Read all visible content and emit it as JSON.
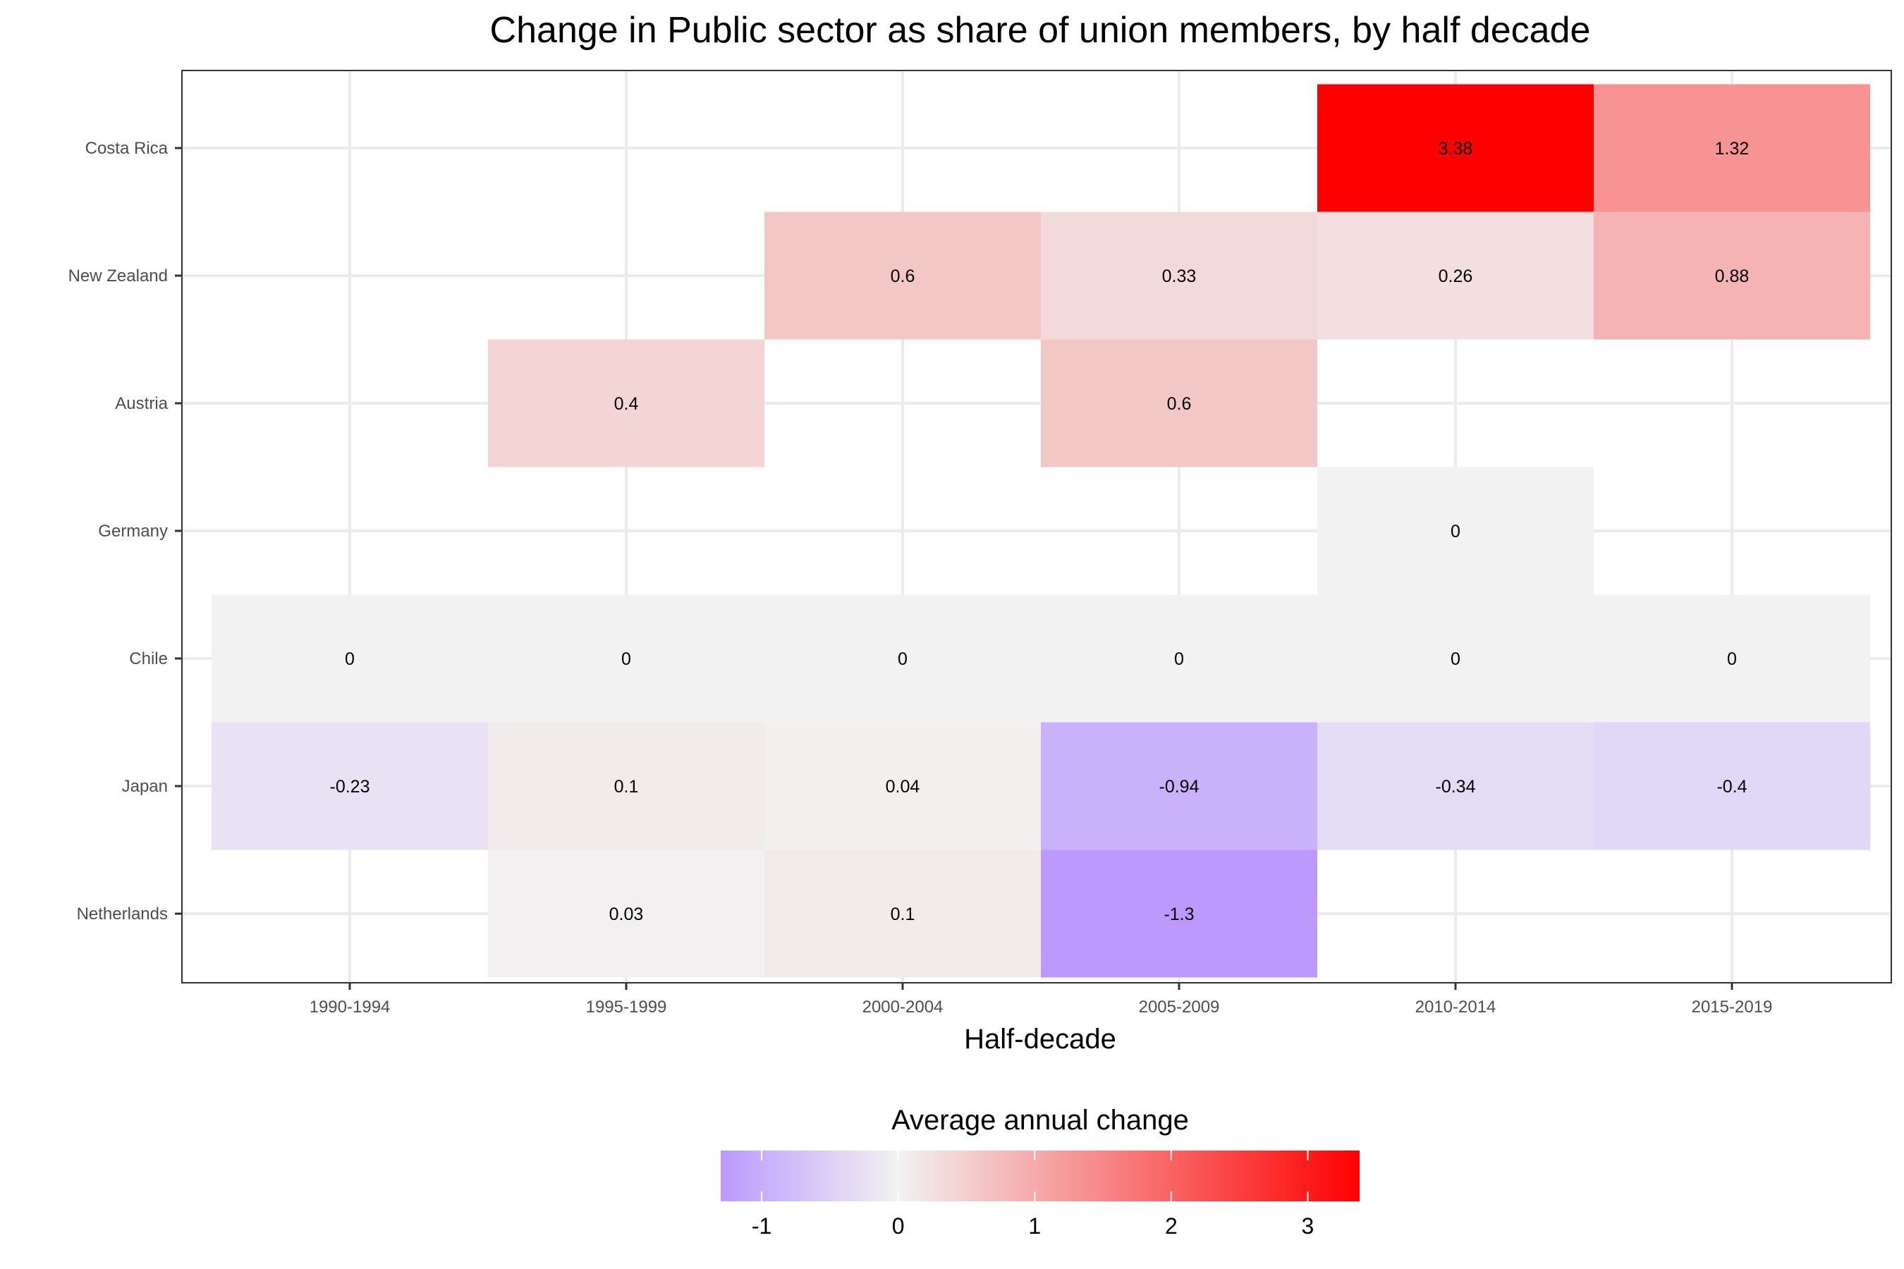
{
  "chart_data": {
    "type": "heatmap",
    "title": "Change in Public sector as share of union members, by half decade",
    "xlabel": "Half-decade",
    "ylabel": "",
    "x_categories": [
      "1990-1994",
      "1995-1999",
      "2000-2004",
      "2005-2009",
      "2010-2014",
      "2015-2019"
    ],
    "y_categories": [
      "Costa Rica",
      "New Zealand",
      "Austria",
      "Germany",
      "Chile",
      "Japan",
      "Netherlands"
    ],
    "cells": [
      {
        "x": "2010-2014",
        "y": "Costa Rica",
        "value": 3.38,
        "label": "3.38"
      },
      {
        "x": "2015-2019",
        "y": "Costa Rica",
        "value": 1.32,
        "label": "1.32"
      },
      {
        "x": "2000-2004",
        "y": "New Zealand",
        "value": 0.6,
        "label": "0.6"
      },
      {
        "x": "2005-2009",
        "y": "New Zealand",
        "value": 0.33,
        "label": "0.33"
      },
      {
        "x": "2010-2014",
        "y": "New Zealand",
        "value": 0.26,
        "label": "0.26"
      },
      {
        "x": "2015-2019",
        "y": "New Zealand",
        "value": 0.88,
        "label": "0.88"
      },
      {
        "x": "1995-1999",
        "y": "Austria",
        "value": 0.4,
        "label": "0.4"
      },
      {
        "x": "2005-2009",
        "y": "Austria",
        "value": 0.6,
        "label": "0.6"
      },
      {
        "x": "2010-2014",
        "y": "Germany",
        "value": 0,
        "label": "0"
      },
      {
        "x": "1990-1994",
        "y": "Chile",
        "value": 0,
        "label": "0"
      },
      {
        "x": "1995-1999",
        "y": "Chile",
        "value": 0,
        "label": "0"
      },
      {
        "x": "2000-2004",
        "y": "Chile",
        "value": 0,
        "label": "0"
      },
      {
        "x": "2005-2009",
        "y": "Chile",
        "value": 0,
        "label": "0"
      },
      {
        "x": "2010-2014",
        "y": "Chile",
        "value": 0,
        "label": "0"
      },
      {
        "x": "2015-2019",
        "y": "Chile",
        "value": 0,
        "label": "0"
      },
      {
        "x": "1990-1994",
        "y": "Japan",
        "value": -0.23,
        "label": "-0.23"
      },
      {
        "x": "1995-1999",
        "y": "Japan",
        "value": 0.1,
        "label": "0.1"
      },
      {
        "x": "2000-2004",
        "y": "Japan",
        "value": 0.04,
        "label": "0.04"
      },
      {
        "x": "2005-2009",
        "y": "Japan",
        "value": -0.94,
        "label": "-0.94"
      },
      {
        "x": "2010-2014",
        "y": "Japan",
        "value": -0.34,
        "label": "-0.34"
      },
      {
        "x": "2015-2019",
        "y": "Japan",
        "value": -0.4,
        "label": "-0.4"
      },
      {
        "x": "1995-1999",
        "y": "Netherlands",
        "value": 0.03,
        "label": "0.03"
      },
      {
        "x": "2000-2004",
        "y": "Netherlands",
        "value": 0.1,
        "label": "0.1"
      },
      {
        "x": "2005-2009",
        "y": "Netherlands",
        "value": -1.3,
        "label": "-1.3"
      }
    ],
    "legend": {
      "title": "Average annual change",
      "placement": "bottom",
      "ticks": [
        -1,
        0,
        1,
        2,
        3
      ],
      "tick_labels": [
        "-1",
        "0",
        "1",
        "2",
        "3"
      ],
      "range": [
        -1.3,
        3.38
      ]
    },
    "colors": {
      "low": "#bb99ff",
      "mid": "#f2f2f2",
      "high": "#ff0000",
      "panel_background": "#ffffff",
      "grid": "#ebebeb",
      "border": "#333333"
    },
    "grid": true
  }
}
